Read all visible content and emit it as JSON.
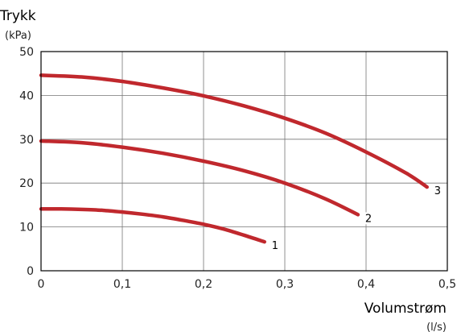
{
  "chart_data": {
    "type": "line",
    "ylabel": "Trykk",
    "yunit": "(kPa)",
    "xlabel": "Volumstrøm",
    "xunit": "(l/s)",
    "xlim": [
      0,
      0.5
    ],
    "ylim": [
      0,
      50
    ],
    "xticks": [
      0,
      0.1,
      0.2,
      0.3,
      0.4,
      0.5
    ],
    "xtick_labels": [
      "0",
      "0,1",
      "0,2",
      "0,3",
      "0,4",
      "0,5"
    ],
    "yticks": [
      0,
      10,
      20,
      30,
      40,
      50
    ],
    "ytick_labels": [
      "0",
      "10",
      "20",
      "30",
      "40",
      "50"
    ],
    "grid": true,
    "line_color": "#c0282d",
    "series": [
      {
        "name": "1",
        "x": [
          0,
          0.025,
          0.05,
          0.075,
          0.1,
          0.125,
          0.15,
          0.175,
          0.2,
          0.225,
          0.25,
          0.275
        ],
        "y": [
          14.1,
          14.1,
          14.0,
          13.8,
          13.4,
          12.9,
          12.3,
          11.5,
          10.6,
          9.5,
          8.1,
          6.6
        ]
      },
      {
        "name": "2",
        "x": [
          0,
          0.05,
          0.1,
          0.15,
          0.2,
          0.25,
          0.3,
          0.35,
          0.39
        ],
        "y": [
          29.6,
          29.2,
          28.2,
          26.8,
          25.0,
          22.8,
          20.0,
          16.4,
          12.8
        ]
      },
      {
        "name": "3",
        "x": [
          0,
          0.05,
          0.1,
          0.15,
          0.2,
          0.25,
          0.3,
          0.35,
          0.4,
          0.45,
          0.475
        ],
        "y": [
          44.6,
          44.2,
          43.2,
          41.7,
          39.9,
          37.6,
          34.8,
          31.4,
          27.1,
          22.2,
          19.1
        ]
      }
    ]
  }
}
